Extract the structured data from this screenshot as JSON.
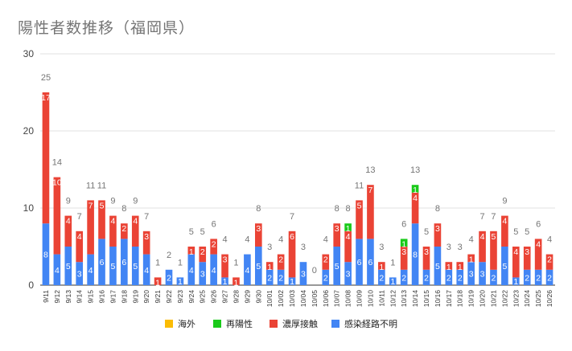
{
  "chart_data": {
    "type": "bar",
    "stacked": true,
    "title": "陽性者数推移（福岡県）",
    "xlabel": "",
    "ylabel": "",
    "ylim": [
      0,
      30
    ],
    "yticks": [
      0,
      10,
      20,
      30
    ],
    "grid": true,
    "legend_position": "bottom",
    "categories": [
      "9/11",
      "9/12",
      "9/13",
      "9/14",
      "9/15",
      "9/16",
      "9/17",
      "9/18",
      "9/19",
      "9/20",
      "9/21",
      "9/22",
      "9/23",
      "9/24",
      "9/25",
      "9/26",
      "9/27",
      "9/28",
      "9/29",
      "9/30",
      "10/01",
      "10/02",
      "10/03",
      "10/04",
      "10/05",
      "10/06",
      "10/07",
      "10/08",
      "10/09",
      "10/10",
      "10/11",
      "10/12",
      "10/13",
      "10/14",
      "10/15",
      "10/16",
      "10/17",
      "10/18",
      "10/19",
      "10/20",
      "10/21",
      "10/22",
      "10/23",
      "10/24",
      "10/25",
      "10/26"
    ],
    "series": [
      {
        "name": "感染経路不明",
        "color": "#4285f4",
        "values": [
          8,
          4,
          5,
          3,
          4,
          6,
          5,
          6,
          5,
          4,
          0,
          2,
          1,
          4,
          3,
          4,
          1,
          0,
          4,
          5,
          2,
          2,
          1,
          3,
          0,
          2,
          5,
          3,
          6,
          6,
          2,
          1,
          2,
          8,
          2,
          5,
          2,
          2,
          3,
          3,
          2,
          5,
          1,
          2,
          2,
          2
        ]
      },
      {
        "name": "濃厚接触",
        "color": "#ea4335",
        "values": [
          17,
          10,
          4,
          4,
          7,
          5,
          4,
          2,
          4,
          3,
          1,
          0,
          0,
          1,
          2,
          2,
          3,
          1,
          0,
          3,
          1,
          2,
          6,
          0,
          0,
          2,
          3,
          4,
          5,
          7,
          1,
          0,
          3,
          4,
          3,
          3,
          1,
          1,
          1,
          4,
          5,
          4,
          4,
          3,
          4,
          2
        ]
      },
      {
        "name": "再陽性",
        "color": "#1aca1a",
        "values": [
          0,
          0,
          0,
          0,
          0,
          0,
          0,
          0,
          0,
          0,
          0,
          0,
          0,
          0,
          0,
          0,
          0,
          0,
          0,
          0,
          0,
          0,
          0,
          0,
          0,
          0,
          0,
          1,
          0,
          0,
          0,
          0,
          1,
          1,
          0,
          0,
          0,
          0,
          0,
          0,
          0,
          0,
          0,
          0,
          0,
          0
        ]
      },
      {
        "name": "海外",
        "color": "#fbbc04",
        "values": [
          0,
          0,
          0,
          0,
          0,
          0,
          0,
          0,
          0,
          0,
          0,
          0,
          0,
          0,
          0,
          0,
          0,
          0,
          0,
          0,
          0,
          0,
          0,
          0,
          0,
          0,
          0,
          0,
          0,
          0,
          0,
          0,
          0,
          0,
          0,
          0,
          0,
          0,
          0,
          0,
          0,
          0,
          0,
          0,
          0,
          0
        ]
      }
    ],
    "totals": [
      25,
      14,
      9,
      7,
      11,
      11,
      9,
      8,
      9,
      7,
      1,
      2,
      1,
      5,
      5,
      6,
      4,
      1,
      4,
      8,
      3,
      4,
      7,
      3,
      0,
      4,
      8,
      8,
      11,
      13,
      3,
      1,
      6,
      13,
      5,
      8,
      3,
      3,
      4,
      7,
      7,
      9,
      5,
      5,
      6,
      4
    ],
    "legend_order": [
      "海外",
      "再陽性",
      "濃厚接触",
      "感染経路不明"
    ]
  }
}
